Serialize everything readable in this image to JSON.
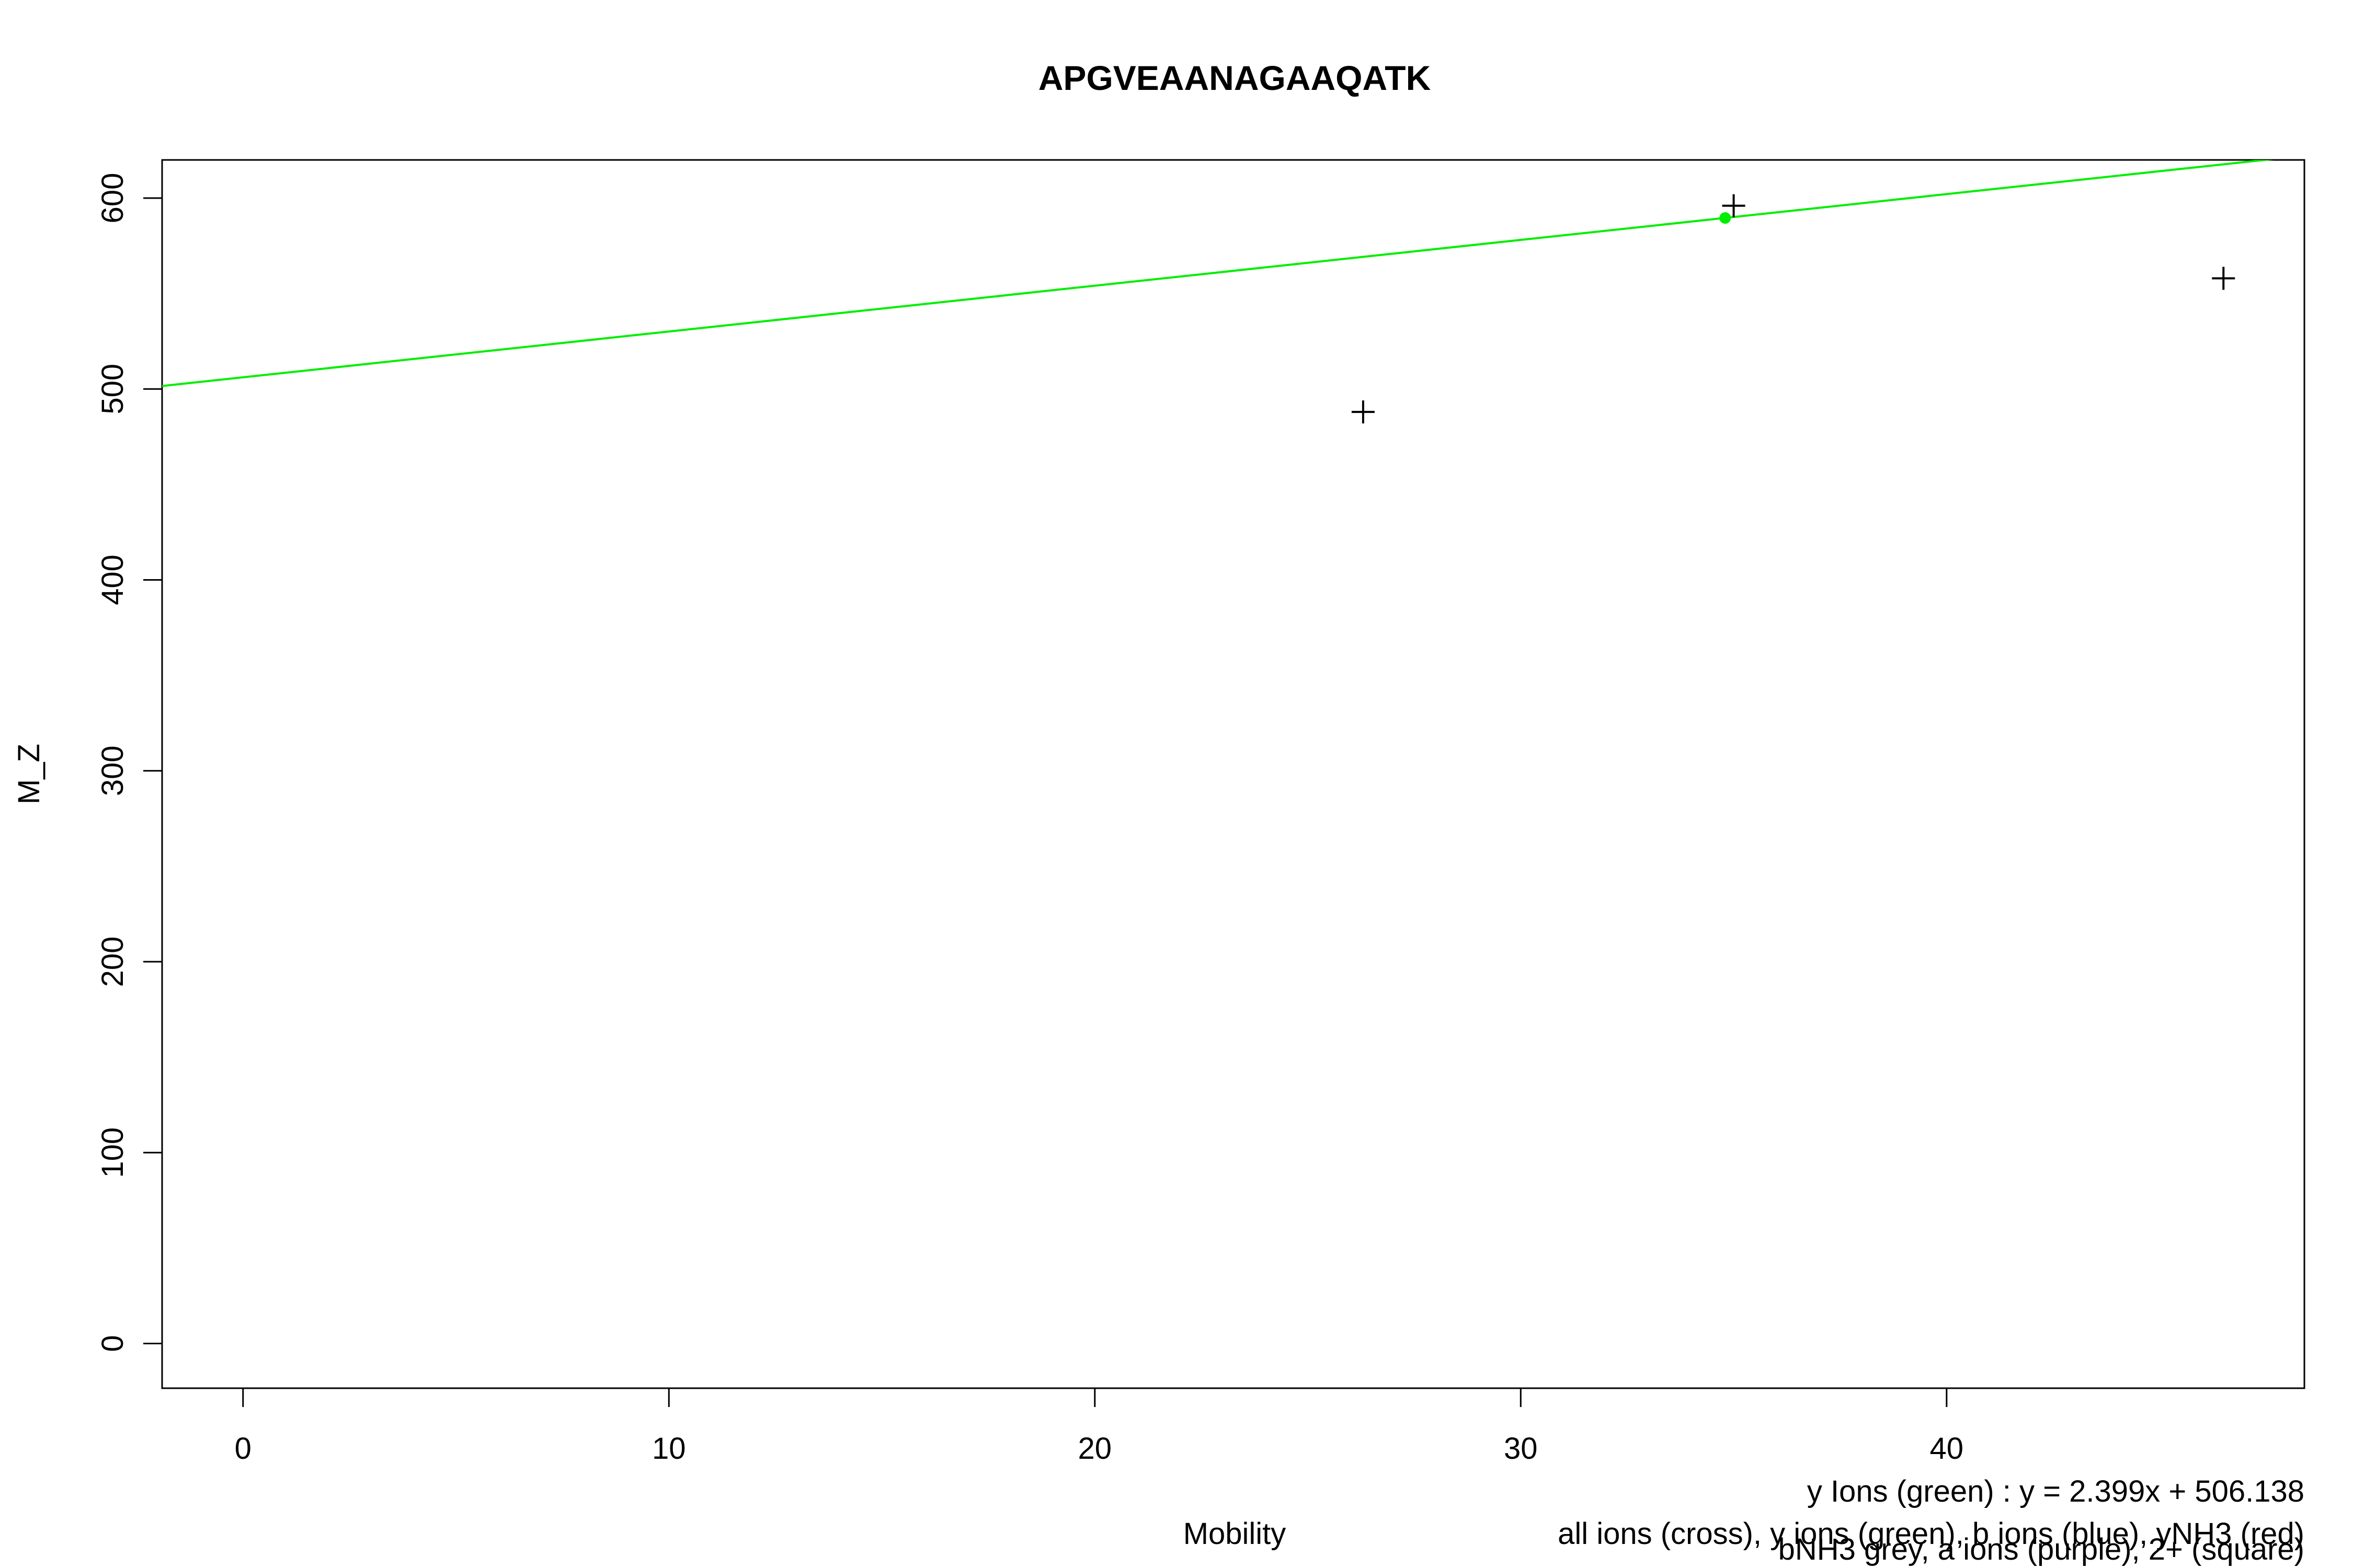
{
  "chart_data": {
    "type": "scatter",
    "title": "APGVEAANAGAAQATK",
    "xlabel": "Mobility",
    "ylabel": "M_Z",
    "xlim": [
      -1.9,
      48.4
    ],
    "ylim": [
      -23.4,
      620
    ],
    "x_ticks": [
      0,
      10,
      20,
      30,
      40
    ],
    "y_ticks": [
      0,
      100,
      200,
      300,
      400,
      500,
      600
    ],
    "grid": false,
    "series": [
      {
        "marker": "cross",
        "color": "#000000",
        "points": [
          {
            "x": 26.3,
            "y": 488
          },
          {
            "x": 35.0,
            "y": 596
          },
          {
            "x": 46.5,
            "y": 558
          }
        ]
      },
      {
        "marker": "circle",
        "color": "#00ee00",
        "points": [
          {
            "x": 34.8,
            "y": 589.6
          }
        ]
      }
    ],
    "fit_line": {
      "slope": 2.399,
      "intercept": 506.138,
      "color": "#00ee00"
    },
    "annotations": [
      "y Ions (green) : y = 2.399x + 506.138",
      "all ions (cross), y ions (green), b ions (blue), yNH3 (red)",
      "bNH3 grey, a ions (purple), 2+ (square)"
    ]
  }
}
